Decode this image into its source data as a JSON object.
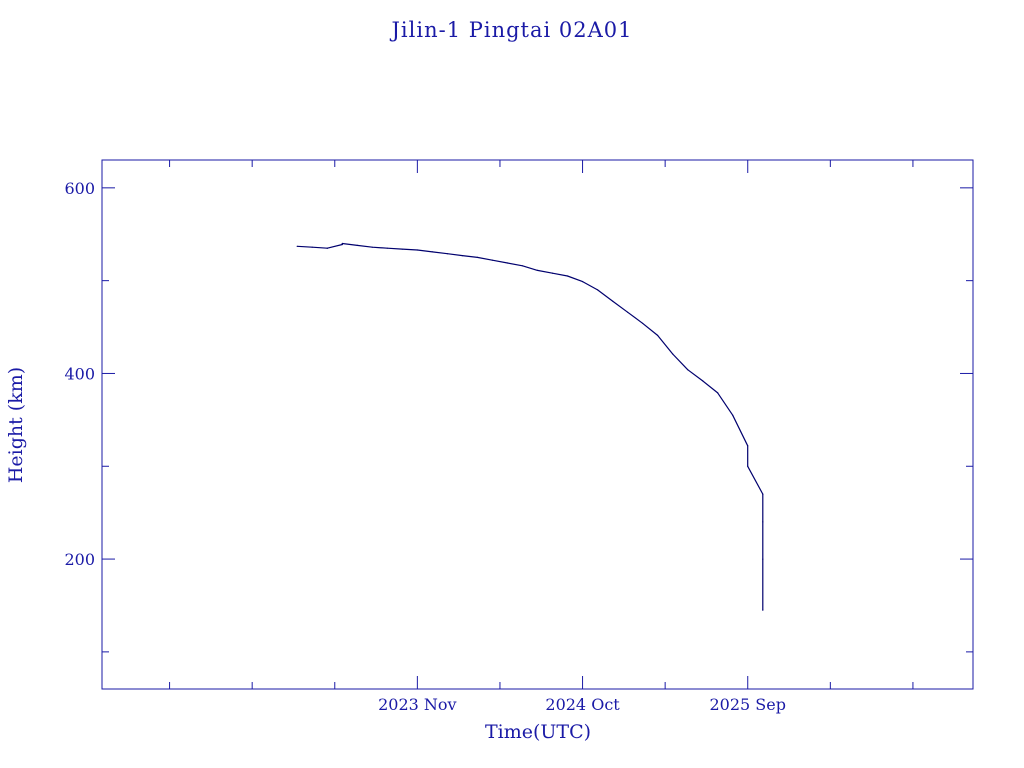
{
  "chart_data": {
    "type": "line",
    "title": "Jilin-1 Pingtai 02A01",
    "xlabel": "Time(UTC)",
    "ylabel": "Height (km)",
    "x_ticks": [
      "2023 Nov",
      "2024 Oct",
      "2025 Sep"
    ],
    "y_ticks": [
      200,
      400,
      600
    ],
    "ylim": [
      60,
      630
    ],
    "xlim": [
      "2022-02",
      "2026-12"
    ],
    "grid": false,
    "line_color": "#00006e",
    "text_color": "#1a1aa6",
    "series": [
      {
        "x": [
          "2023-03",
          "2023-04",
          "2023-05",
          "2023-05",
          "2023-06",
          "2023-06",
          "2023-07",
          "2023-08",
          "2023-09",
          "2023-10",
          "2023-11",
          "2023-12",
          "2024-01",
          "2024-02",
          "2024-03",
          "2024-04",
          "2024-05",
          "2024-06",
          "2024-07",
          "2024-08",
          "2024-09",
          "2024-10",
          "2024-11",
          "2024-12",
          "2025-01",
          "2025-02",
          "2025-03",
          "2025-04",
          "2025-05",
          "2025-06",
          "2025-07",
          "2025-08",
          "2025-09",
          "2025-09",
          "2025-10",
          "2025-10",
          "2025-10",
          "2025-10"
        ],
        "y": [
          537,
          536,
          535,
          535,
          539,
          540,
          538,
          536,
          535,
          534,
          533,
          531,
          529,
          527,
          525,
          522,
          519,
          516,
          511,
          508,
          505,
          499,
          490,
          478,
          466,
          454,
          441,
          421,
          404,
          392,
          379,
          355,
          322,
          300,
          270,
          240,
          200,
          145
        ]
      }
    ]
  }
}
